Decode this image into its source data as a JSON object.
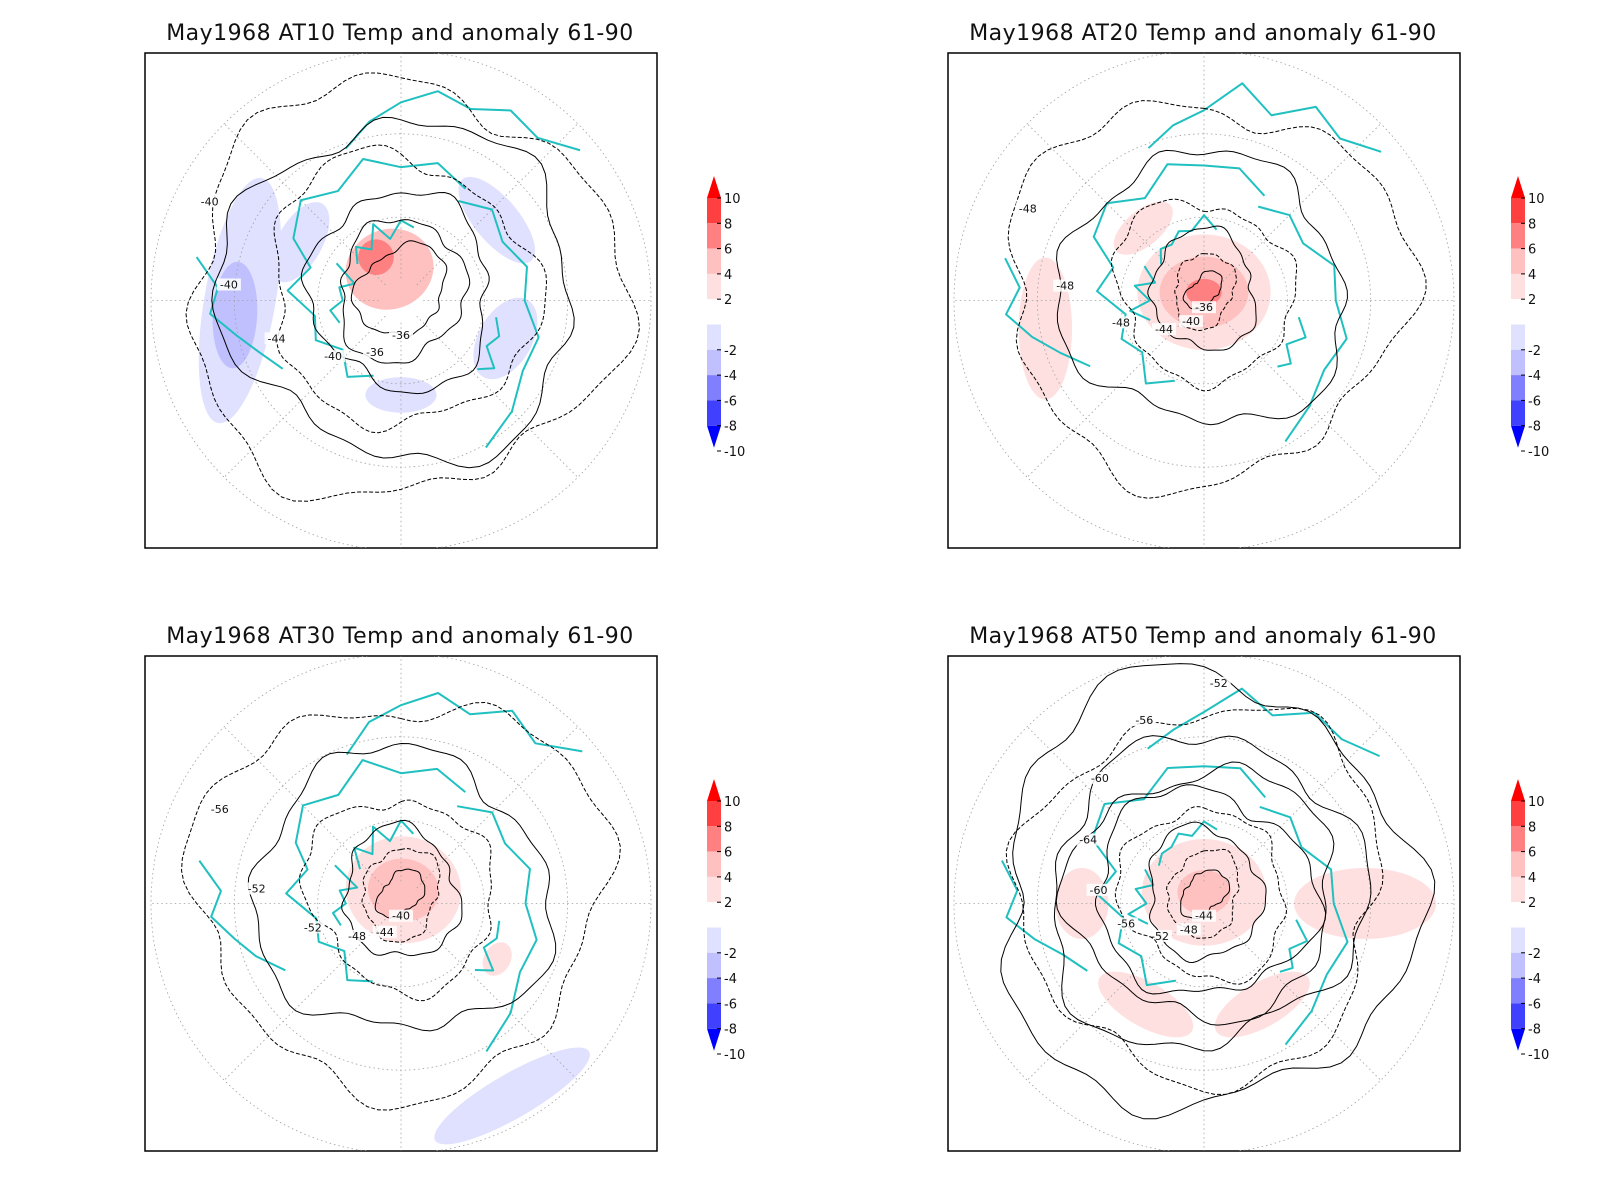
{
  "panels": [
    {
      "title": "May1968 AT10 Temp and anomaly 61-90",
      "anomaly_blobs": [
        {
          "lon": 110,
          "colat": 40,
          "rx": 10,
          "ry": 6,
          "rot": 10,
          "val": -2
        },
        {
          "lon": 180,
          "colat": 34,
          "rx": 8,
          "ry": 4,
          "rot": 0,
          "val": -2
        },
        {
          "lon": 340,
          "colat": 12,
          "rx": 10,
          "ry": 9,
          "rot": 0,
          "val": 4
        },
        {
          "lon": 330,
          "colat": 18,
          "rx": 4,
          "ry": 4,
          "rot": 0,
          "val": 6
        },
        {
          "lon": 270,
          "colat": 58,
          "rx": 28,
          "ry": 8,
          "rot": 10,
          "val": -2
        },
        {
          "lon": 265,
          "colat": 60,
          "rx": 12,
          "ry": 5,
          "rot": 8,
          "val": -4
        },
        {
          "lon": 300,
          "colat": 42,
          "rx": 10,
          "ry": 5,
          "rot": 0,
          "val": -2
        },
        {
          "lon": 50,
          "colat": 45,
          "rx": 12,
          "ry": 5,
          "rot": 0,
          "val": -2
        }
      ],
      "contour_rings": [
        {
          "colat": 16,
          "label": "-36"
        },
        {
          "colat": 24,
          "label": "-36"
        },
        {
          "colat": 34,
          "label": "-40"
        },
        {
          "colat": 48,
          "label": "-44"
        },
        {
          "colat": 62,
          "label": "-40"
        },
        {
          "colat": 76,
          "label": "-40"
        }
      ]
    },
    {
      "title": "May1968 AT20 Temp and anomaly 61-90",
      "anomaly_blobs": [
        {
          "lon": 0,
          "colat": 3,
          "rx": 15,
          "ry": 13,
          "rot": 0,
          "val": 2
        },
        {
          "lon": 0,
          "colat": 3,
          "rx": 10,
          "ry": 8,
          "rot": 0,
          "val": 4
        },
        {
          "lon": 0,
          "colat": 3,
          "rx": 4,
          "ry": 3,
          "rot": 0,
          "val": 6
        },
        {
          "lon": 260,
          "colat": 58,
          "rx": 16,
          "ry": 6,
          "rot": 10,
          "val": 2
        },
        {
          "lon": 320,
          "colat": 34,
          "rx": 8,
          "ry": 4,
          "rot": 0,
          "val": 2
        }
      ],
      "contour_rings": [
        {
          "colat": 6,
          "label": "-36"
        },
        {
          "colat": 12,
          "label": "-40"
        },
        {
          "colat": 20,
          "label": "-44"
        },
        {
          "colat": 32,
          "label": "-48"
        },
        {
          "colat": 50,
          "label": "-48"
        },
        {
          "colat": 70,
          "label": "-48"
        }
      ]
    },
    {
      "title": "May1968 AT30 Temp and anomaly 61-90",
      "anomaly_blobs": [
        {
          "lon": 10,
          "colat": 5,
          "rx": 13,
          "ry": 12,
          "rot": 0,
          "val": 2
        },
        {
          "lon": 10,
          "colat": 5,
          "rx": 8,
          "ry": 7,
          "rot": 0,
          "val": 4
        },
        {
          "lon": 150,
          "colat": 80,
          "rx": 20,
          "ry": 5,
          "rot": 0,
          "val": -2
        },
        {
          "lon": 120,
          "colat": 40,
          "rx": 4,
          "ry": 3,
          "rot": 0,
          "val": 2
        }
      ],
      "contour_rings": [
        {
          "colat": 8,
          "label": "-40"
        },
        {
          "colat": 15,
          "label": "-44"
        },
        {
          "colat": 22,
          "label": "-48"
        },
        {
          "colat": 34,
          "label": "-52"
        },
        {
          "colat": 52,
          "label": "-52"
        },
        {
          "colat": 72,
          "label": "-56"
        }
      ]
    },
    {
      "title": "May1968 AT50 Temp and anomaly 61-90",
      "anomaly_blobs": [
        {
          "lon": 0,
          "colat": 4,
          "rx": 14,
          "ry": 12,
          "rot": 0,
          "val": 2
        },
        {
          "lon": 0,
          "colat": 4,
          "rx": 6,
          "ry": 5,
          "rot": 0,
          "val": 4
        },
        {
          "lon": 150,
          "colat": 42,
          "rx": 12,
          "ry": 5,
          "rot": 0,
          "val": 2
        },
        {
          "lon": 210,
          "colat": 42,
          "rx": 12,
          "ry": 5,
          "rot": 0,
          "val": 2
        },
        {
          "lon": 90,
          "colat": 58,
          "rx": 8,
          "ry": 16,
          "rot": 0,
          "val": 2
        },
        {
          "lon": 270,
          "colat": 44,
          "rx": 8,
          "ry": 6,
          "rot": 0,
          "val": 2
        }
      ],
      "contour_rings": [
        {
          "colat": 8,
          "label": "-44"
        },
        {
          "colat": 14,
          "label": "-48"
        },
        {
          "colat": 22,
          "label": "-52"
        },
        {
          "colat": 30,
          "label": "-56"
        },
        {
          "colat": 38,
          "label": "-60"
        },
        {
          "colat": 46,
          "label": "-64"
        },
        {
          "colat": 56,
          "label": "-60"
        },
        {
          "colat": 66,
          "label": "-56"
        },
        {
          "colat": 76,
          "label": "-52"
        }
      ]
    }
  ],
  "colorbar": {
    "labels": [
      "10",
      "8",
      "6",
      "4",
      "2",
      "-2",
      "-4",
      "-6",
      "-8",
      "-10"
    ],
    "colors": [
      "#ff0000",
      "#ff4040",
      "#ff8080",
      "#ffc0c0",
      "#ffe0e0",
      "#ffffff",
      "#e0e0ff",
      "#c0c0ff",
      "#8080ff",
      "#4040ff",
      "#0000ff"
    ]
  },
  "colors": {
    "coastline": "#20c0c0",
    "contour": "#000000",
    "grid": "#a0a0a0"
  }
}
